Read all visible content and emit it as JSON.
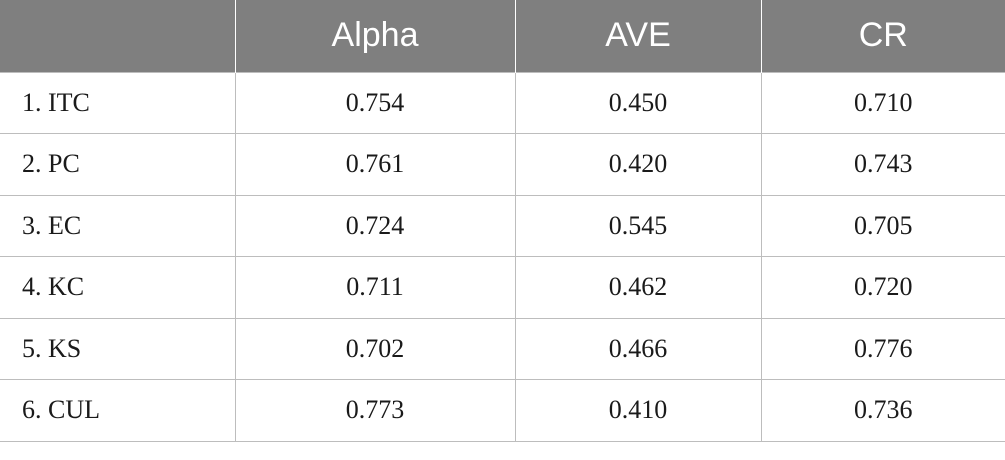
{
  "table": {
    "headers": [
      "",
      "Alpha",
      "AVE",
      "CR"
    ],
    "rows": [
      [
        "1. ITC",
        "0.754",
        "0.450",
        "0.710"
      ],
      [
        "2. PC",
        "0.761",
        "0.420",
        "0.743"
      ],
      [
        "3. EC",
        "0.724",
        "0.545",
        "0.705"
      ],
      [
        "4. KC",
        "0.711",
        "0.462",
        "0.720"
      ],
      [
        "5. KS",
        "0.702",
        "0.466",
        "0.776"
      ],
      [
        "6. CUL",
        "0.773",
        "0.410",
        "0.736"
      ]
    ]
  }
}
